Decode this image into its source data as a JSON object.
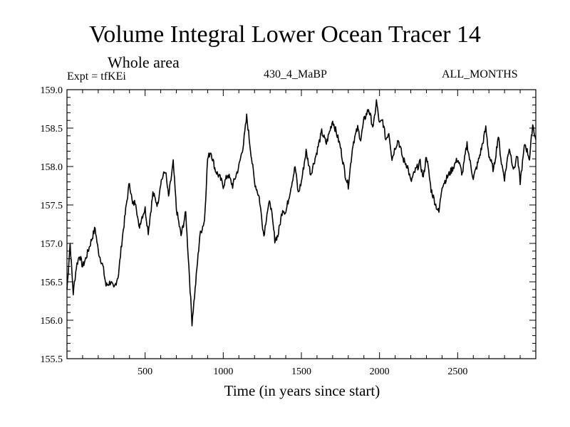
{
  "chart_data": {
    "type": "line",
    "title": "Volume Integral Lower Ocean Tracer 14",
    "subtitle": "Whole area",
    "expt_label": "Expt = tfKEi",
    "run_label": "430_4_MaBP",
    "months_label": "ALL_MONTHS",
    "xlabel": "Time (in years since start)",
    "ylabel": "",
    "xlim": [
      0,
      3000
    ],
    "ylim": [
      155.5,
      159.0
    ],
    "x_ticks": [
      500,
      1000,
      1500,
      2000,
      2500
    ],
    "y_ticks": [
      155.5,
      156.0,
      156.5,
      157.0,
      157.5,
      158.0,
      158.5,
      159.0
    ],
    "grid": false,
    "series": [
      {
        "x": [
          0,
          20,
          40,
          60,
          80,
          100,
          120,
          150,
          180,
          200,
          230,
          250,
          280,
          300,
          330,
          350,
          380,
          400,
          420,
          440,
          460,
          480,
          500,
          520,
          550,
          580,
          600,
          630,
          650,
          680,
          700,
          730,
          760,
          780,
          800,
          820,
          850,
          880,
          900,
          920,
          950,
          980,
          1000,
          1030,
          1060,
          1100,
          1130,
          1150,
          1170,
          1200,
          1230,
          1260,
          1280,
          1300,
          1330,
          1350,
          1380,
          1400,
          1430,
          1460,
          1480,
          1500,
          1530,
          1560,
          1580,
          1600,
          1630,
          1660,
          1700,
          1730,
          1750,
          1780,
          1800,
          1830,
          1860,
          1880,
          1900,
          1930,
          1960,
          1980,
          2000,
          2020,
          2040,
          2060,
          2080,
          2100,
          2120,
          2150,
          2180,
          2200,
          2230,
          2260,
          2280,
          2300,
          2330,
          2360,
          2380,
          2400,
          2430,
          2460,
          2500,
          2530,
          2560,
          2580,
          2600,
          2630,
          2660,
          2680,
          2700,
          2730,
          2760,
          2780,
          2800,
          2830,
          2860,
          2880,
          2900,
          2930,
          2960,
          2980,
          3000
        ],
        "values": [
          156.4,
          157.0,
          156.35,
          156.7,
          156.85,
          156.7,
          156.8,
          157.0,
          157.2,
          156.9,
          156.7,
          156.45,
          156.5,
          156.4,
          156.6,
          157.0,
          157.5,
          157.8,
          157.5,
          157.55,
          157.2,
          157.35,
          157.45,
          157.15,
          157.65,
          157.5,
          157.8,
          157.95,
          157.6,
          158.05,
          157.45,
          157.1,
          157.4,
          156.7,
          155.97,
          156.4,
          157.1,
          157.3,
          158.1,
          158.2,
          157.95,
          157.85,
          157.75,
          157.9,
          157.75,
          158.0,
          158.3,
          158.65,
          158.3,
          157.8,
          157.6,
          157.1,
          157.4,
          157.55,
          157.05,
          157.1,
          157.45,
          157.4,
          157.7,
          158.0,
          157.65,
          157.8,
          158.2,
          157.9,
          158.05,
          158.2,
          158.45,
          158.3,
          158.6,
          158.4,
          158.25,
          157.9,
          157.75,
          158.3,
          158.5,
          158.35,
          158.6,
          158.75,
          158.5,
          158.85,
          158.55,
          158.6,
          158.35,
          158.45,
          158.1,
          158.25,
          158.35,
          158.1,
          158.0,
          157.8,
          157.95,
          158.05,
          157.85,
          158.15,
          157.7,
          157.5,
          157.4,
          157.75,
          157.85,
          157.95,
          158.1,
          157.9,
          158.3,
          158.05,
          157.85,
          158.05,
          158.3,
          158.5,
          158.15,
          157.95,
          158.4,
          158.05,
          157.85,
          158.25,
          157.95,
          158.15,
          157.8,
          158.3,
          158.1,
          158.55,
          158.35
        ]
      }
    ]
  }
}
